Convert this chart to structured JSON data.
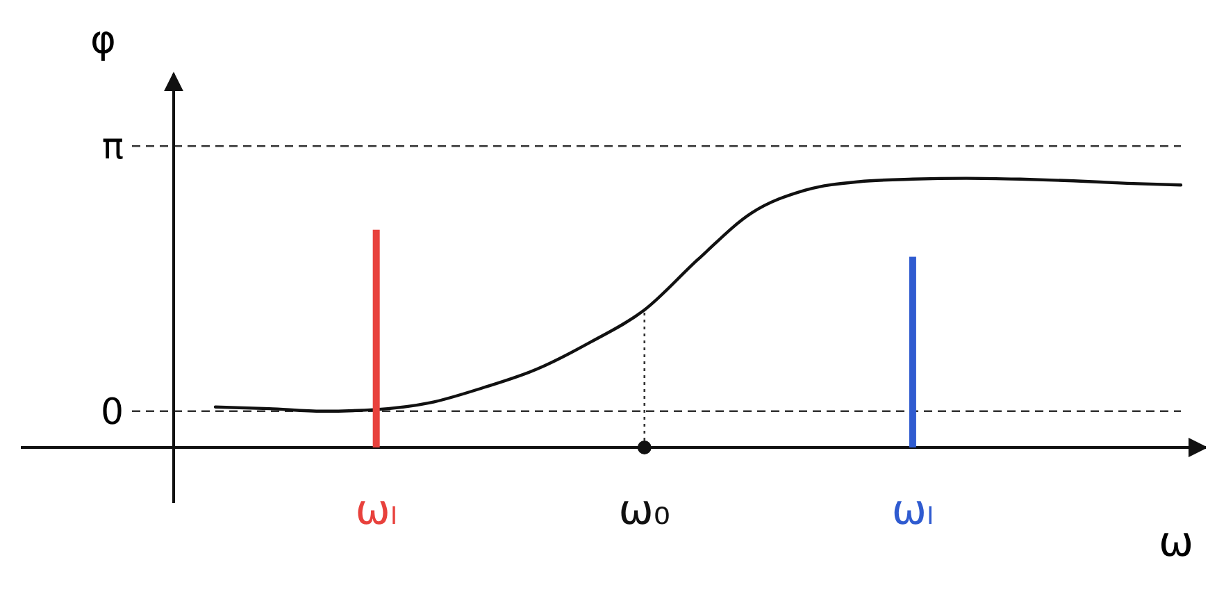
{
  "chart_data": {
    "type": "line",
    "xlabel": "ω",
    "ylabel": "φ",
    "categories": [
      null,
      null,
      null,
      "ωₗ",
      null,
      null,
      null,
      null,
      "ω₀",
      null,
      null,
      null,
      null,
      "ωₗ",
      null,
      null,
      null,
      null,
      null
    ],
    "ylim": [
      -0.43,
      4.0
    ],
    "yticks": [
      0,
      {
        "value": 3.1416,
        "label": "π"
      }
    ],
    "series": [
      {
        "color": "#111111",
        "values": [
          0.05,
          0.03,
          0.0,
          0.02,
          0.1,
          0.28,
          0.5,
          0.82,
          1.2,
          1.8,
          2.35,
          2.62,
          2.72,
          2.75,
          2.76,
          2.75,
          2.73,
          2.7,
          2.68
        ]
      },
      {
        "type": "bar",
        "colors": [
          null,
          null,
          null,
          "#e8413c",
          null,
          null,
          null,
          null,
          null,
          null,
          null,
          null,
          null,
          "#2f5bd0",
          null,
          null,
          null,
          null,
          null
        ],
        "base": [
          null,
          null,
          null,
          -0.43,
          null,
          null,
          null,
          null,
          null,
          null,
          null,
          null,
          null,
          -0.43,
          null,
          null,
          null,
          null,
          null
        ],
        "values": [
          null,
          null,
          null,
          2.58,
          null,
          null,
          null,
          null,
          null,
          null,
          null,
          null,
          null,
          2.26,
          null,
          null,
          null,
          null,
          null
        ]
      },
      {
        "type": "scatter",
        "color": "#111111",
        "marker": "circle",
        "values": [
          null,
          null,
          null,
          null,
          null,
          null,
          null,
          null,
          -0.43,
          null,
          null,
          null,
          null,
          null,
          null,
          null,
          null,
          null,
          null
        ]
      }
    ],
    "ref_lines": [
      {
        "axis": "y",
        "value": 0,
        "line_style": "dashed",
        "color": "#333333"
      },
      {
        "axis": "y",
        "value": 3.1416,
        "line_style": "dashed",
        "color": "#333333"
      },
      {
        "axis": "x",
        "value": "ω₀",
        "line_style": "dotted",
        "color": "#333333"
      }
    ]
  }
}
